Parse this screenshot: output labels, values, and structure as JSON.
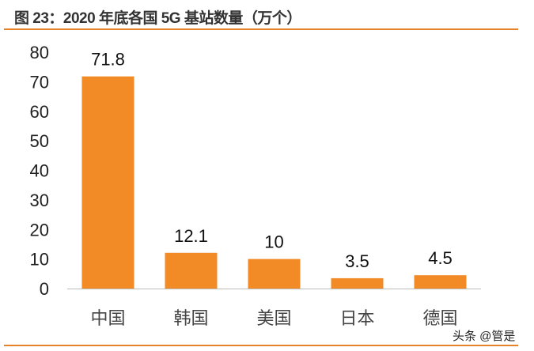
{
  "title": "图 23：2020 年底各国 5G 基站数量（万个）",
  "watermark": "头条 @管是",
  "chart_data": {
    "type": "bar",
    "title": "图 23：2020 年底各国 5G 基站数量（万个）",
    "categories": [
      "中国",
      "韩国",
      "美国",
      "日本",
      "德国"
    ],
    "values": [
      71.8,
      12.1,
      10,
      3.5,
      4.5
    ],
    "data_labels": [
      "71.8",
      "12.1",
      "10",
      "3.5",
      "4.5"
    ],
    "xlabel": "",
    "ylabel": "",
    "ylim": [
      0,
      80
    ],
    "yticks": [
      0,
      10,
      20,
      30,
      40,
      50,
      60,
      70,
      80
    ],
    "grid": false,
    "bar_color": "#f28a26"
  }
}
